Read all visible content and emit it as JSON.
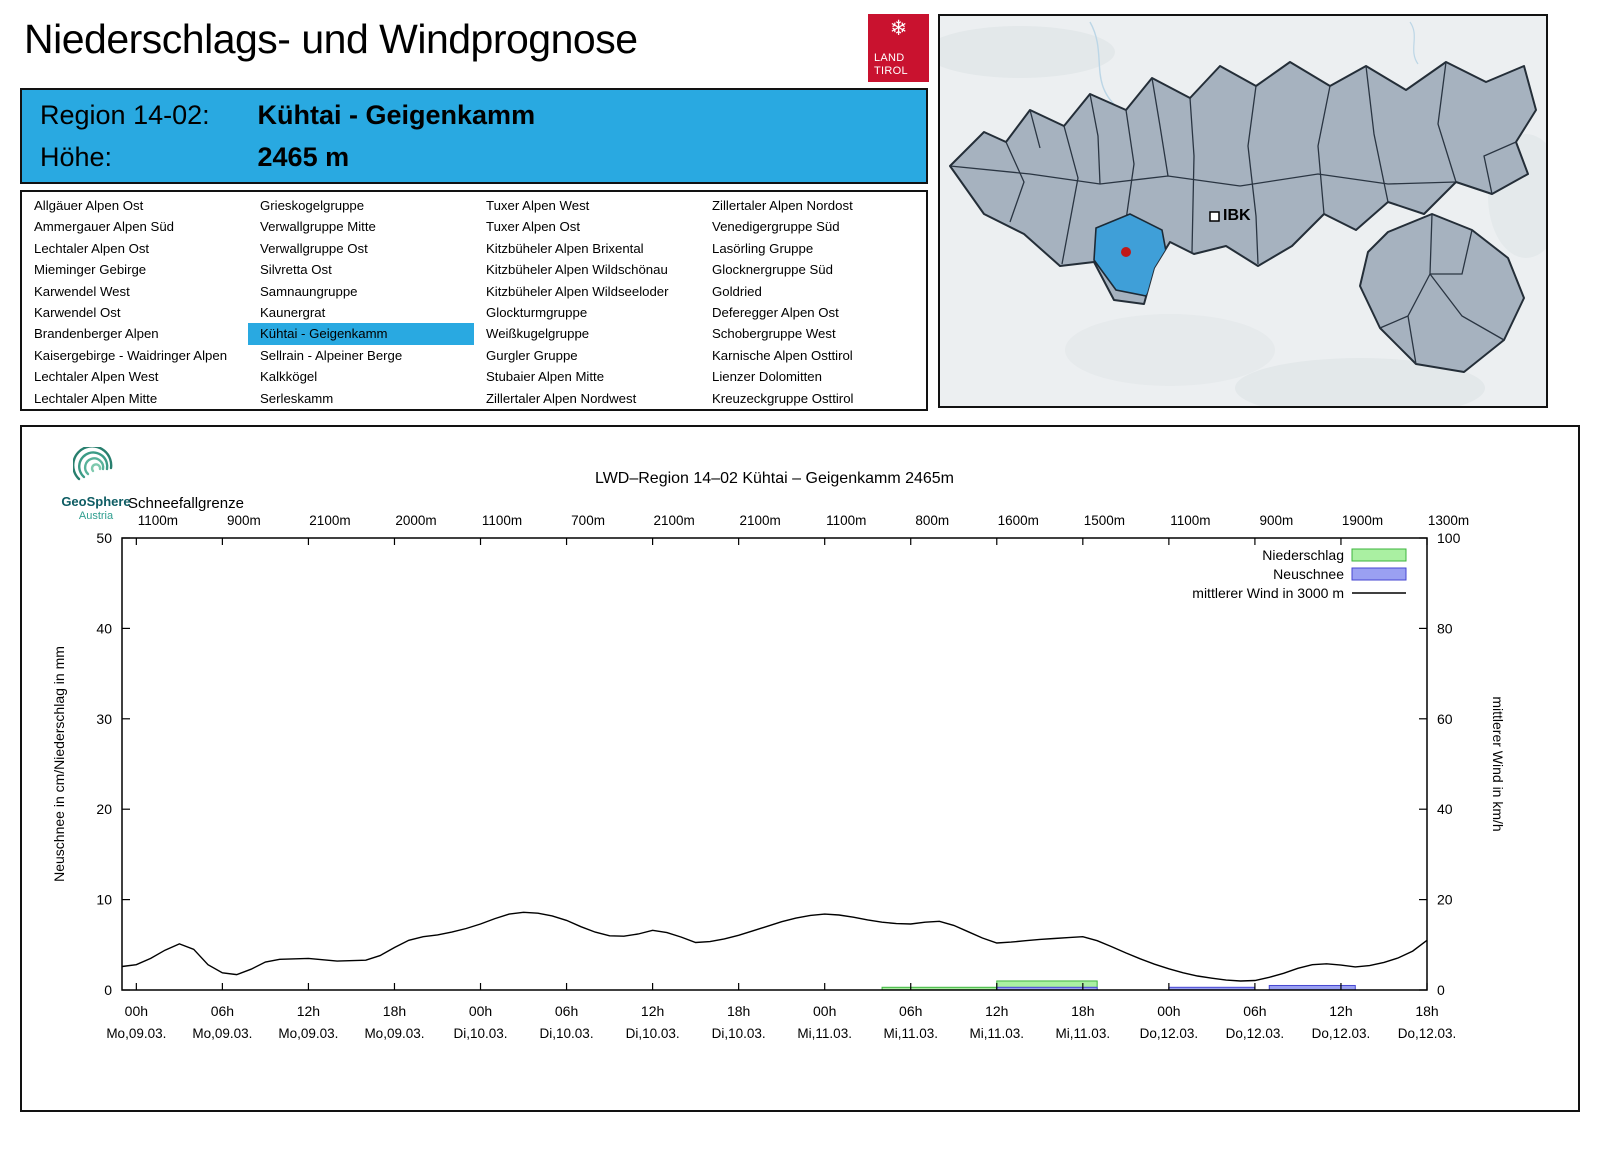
{
  "header": {
    "title": "Niederschlags- und Windprognose",
    "logo": {
      "emblem_glyph": "❄",
      "line1": "LAND",
      "line2": "TIROL",
      "color": "#c9122f"
    }
  },
  "region_box": {
    "region_label": "Region 14-02:",
    "region_value": "Kühtai - Geigenkamm",
    "altitude_label": "Höhe:",
    "altitude_value": "2465 m",
    "bg_color": "#29a9e1"
  },
  "region_list": {
    "selected": "Kühtai - Geigenkamm",
    "columns": [
      [
        "Allgäuer Alpen Ost",
        "Ammergauer Alpen Süd",
        "Lechtaler Alpen Ost",
        "Mieminger Gebirge",
        "Karwendel West",
        "Karwendel Ost",
        "Brandenberger Alpen",
        "Kaisergebirge - Waidringer Alpen",
        "Lechtaler Alpen West",
        "Lechtaler Alpen Mitte"
      ],
      [
        "Grieskogelgruppe",
        "Verwallgruppe Mitte",
        "Verwallgruppe Ost",
        "Silvretta Ost",
        "Samnaungruppe",
        "Kaunergrat",
        "Kühtai - Geigenkamm",
        "Sellrain - Alpeiner Berge",
        "Kalkkögel",
        "Serleskamm"
      ],
      [
        "Tuxer Alpen West",
        "Tuxer Alpen Ost",
        "Kitzbüheler Alpen Brixental",
        "Kitzbüheler Alpen Wildschönau",
        "Kitzbüheler Alpen Wildseeloder",
        "Glockturmgruppe",
        "Weißkugelgruppe",
        "Gurgler Gruppe",
        "Stubaier Alpen Mitte",
        "Zillertaler Alpen Nordwest"
      ],
      [
        "Zillertaler Alpen Nordost",
        "Venedigergruppe Süd",
        "Lasörling Gruppe",
        "Glocknergruppe Süd",
        "Goldried",
        "Deferegger Alpen Ost",
        "Schobergruppe West",
        "Karnische Alpen Osttirol",
        "Lienzer Dolomitten",
        "Kreuzeckgruppe Osttirol"
      ]
    ]
  },
  "map": {
    "city_label": "IBK",
    "highlight_color": "#3f9fd8",
    "region_fill": "#a6b2bf"
  },
  "geosphere": {
    "name": "GeoSphere",
    "country": "Austria"
  },
  "chart_data": {
    "type": "line+bar",
    "title": "LWD–Region 14–02 Kühtai – Geigenkamm 2465m",
    "snowfall_limit": {
      "label": "Schneefallgrenze",
      "values": [
        "1100m",
        "900m",
        "2100m",
        "2000m",
        "1100m",
        "700m",
        "2100m",
        "2100m",
        "1100m",
        "800m",
        "1600m",
        "1500m",
        "1100m",
        "900m",
        "1900m",
        "1300m"
      ]
    },
    "x_axis": {
      "min": 0,
      "max": 91,
      "ticks": [
        {
          "hour": 1,
          "time": "00h",
          "date": "Mo,09.03."
        },
        {
          "hour": 7,
          "time": "06h",
          "date": "Mo,09.03."
        },
        {
          "hour": 13,
          "time": "12h",
          "date": "Mo,09.03."
        },
        {
          "hour": 19,
          "time": "18h",
          "date": "Mo,09.03."
        },
        {
          "hour": 25,
          "time": "00h",
          "date": "Di,10.03."
        },
        {
          "hour": 31,
          "time": "06h",
          "date": "Di,10.03."
        },
        {
          "hour": 37,
          "time": "12h",
          "date": "Di,10.03."
        },
        {
          "hour": 43,
          "time": "18h",
          "date": "Di,10.03."
        },
        {
          "hour": 49,
          "time": "00h",
          "date": "Mi,11.03."
        },
        {
          "hour": 55,
          "time": "06h",
          "date": "Mi,11.03."
        },
        {
          "hour": 61,
          "time": "12h",
          "date": "Mi,11.03."
        },
        {
          "hour": 67,
          "time": "18h",
          "date": "Mi,11.03."
        },
        {
          "hour": 73,
          "time": "00h",
          "date": "Do,12.03."
        },
        {
          "hour": 79,
          "time": "06h",
          "date": "Do,12.03."
        },
        {
          "hour": 85,
          "time": "12h",
          "date": "Do,12.03."
        },
        {
          "hour": 91,
          "time": "18h",
          "date": "Do,12.03."
        }
      ]
    },
    "left_axis": {
      "label": "Neuschnee in cm/Niederschlag in mm",
      "min": 0,
      "max": 50,
      "ticks": [
        0,
        10,
        20,
        30,
        40,
        50
      ]
    },
    "right_axis": {
      "label": "mittlerer Wind in km/h",
      "min": 0,
      "max": 100,
      "ticks": [
        0,
        20,
        40,
        60,
        80,
        100
      ]
    },
    "legend": [
      {
        "label": "Niederschlag",
        "type": "box",
        "fill": "#aaf0a2",
        "stroke": "#3cb43c"
      },
      {
        "label": "Neuschnee",
        "type": "box",
        "fill": "#9aa0f2",
        "stroke": "#4646d2"
      },
      {
        "label": "mittlerer Wind in 3000 m",
        "type": "line",
        "stroke": "#000000"
      }
    ],
    "niederschlag": {
      "unit": "mm",
      "fill": "#aaf0a2",
      "stroke": "#3cb43c",
      "bars": [
        {
          "from": 53,
          "to": 61,
          "value": 0.3
        },
        {
          "from": 61,
          "to": 68,
          "value": 1.0
        }
      ]
    },
    "neuschnee": {
      "unit": "cm",
      "fill": "#9aa0f2",
      "stroke": "#4646d2",
      "bars": [
        {
          "from": 61,
          "to": 68,
          "value": 0.3
        },
        {
          "from": 73,
          "to": 79,
          "value": 0.3
        },
        {
          "from": 80,
          "to": 86,
          "value": 0.5
        }
      ]
    },
    "wind": {
      "name": "mittlerer Wind in 3000 m",
      "unit": "km/h",
      "color": "#000000",
      "points": [
        [
          0,
          5.2
        ],
        [
          1,
          5.6
        ],
        [
          2,
          7
        ],
        [
          3,
          8.8
        ],
        [
          4,
          10.2
        ],
        [
          5,
          9
        ],
        [
          6,
          5.6
        ],
        [
          7,
          3.8
        ],
        [
          8,
          3.4
        ],
        [
          9,
          4.6
        ],
        [
          10,
          6.2
        ],
        [
          11,
          6.8
        ],
        [
          13,
          7
        ],
        [
          15,
          6.4
        ],
        [
          17,
          6.6
        ],
        [
          18,
          7.6
        ],
        [
          19,
          9.4
        ],
        [
          20,
          11
        ],
        [
          21,
          11.8
        ],
        [
          22,
          12.2
        ],
        [
          23,
          12.8
        ],
        [
          24,
          13.6
        ],
        [
          25,
          14.6
        ],
        [
          26,
          15.8
        ],
        [
          27,
          16.8
        ],
        [
          28,
          17.2
        ],
        [
          29,
          17
        ],
        [
          30,
          16.4
        ],
        [
          31,
          15.4
        ],
        [
          32,
          14
        ],
        [
          33,
          12.8
        ],
        [
          34,
          12
        ],
        [
          35,
          11.9
        ],
        [
          36,
          12.4
        ],
        [
          37,
          13.2
        ],
        [
          38,
          12.7
        ],
        [
          39,
          11.7
        ],
        [
          40,
          10.5
        ],
        [
          41,
          10.7
        ],
        [
          42,
          11.3
        ],
        [
          43,
          12.1
        ],
        [
          44,
          13.1
        ],
        [
          45,
          14.1
        ],
        [
          46,
          15.1
        ],
        [
          47,
          15.9
        ],
        [
          48,
          16.5
        ],
        [
          49,
          16.8
        ],
        [
          50,
          16.6
        ],
        [
          51,
          16.1
        ],
        [
          52,
          15.5
        ],
        [
          53,
          15
        ],
        [
          54,
          14.7
        ],
        [
          55,
          14.6
        ],
        [
          56,
          15
        ],
        [
          57,
          15.2
        ],
        [
          58,
          14.3
        ],
        [
          59,
          12.9
        ],
        [
          60,
          11.5
        ],
        [
          61,
          10.4
        ],
        [
          62,
          10.6
        ],
        [
          63,
          10.9
        ],
        [
          64,
          11.2
        ],
        [
          65,
          11.4
        ],
        [
          66,
          11.6
        ],
        [
          67,
          11.8
        ],
        [
          68,
          10.9
        ],
        [
          69,
          9.6
        ],
        [
          70,
          8.2
        ],
        [
          71,
          6.9
        ],
        [
          72,
          5.7
        ],
        [
          73,
          4.7
        ],
        [
          74,
          3.8
        ],
        [
          75,
          3.1
        ],
        [
          76,
          2.6
        ],
        [
          77,
          2.2
        ],
        [
          78,
          2
        ],
        [
          79,
          2.1
        ],
        [
          80,
          2.8
        ],
        [
          81,
          3.7
        ],
        [
          82,
          4.8
        ],
        [
          83,
          5.6
        ],
        [
          84,
          5.8
        ],
        [
          85,
          5.5
        ],
        [
          86,
          5.1
        ],
        [
          87,
          5.4
        ],
        [
          88,
          6.1
        ],
        [
          89,
          7.1
        ],
        [
          90,
          8.6
        ],
        [
          91,
          11
        ]
      ]
    }
  }
}
